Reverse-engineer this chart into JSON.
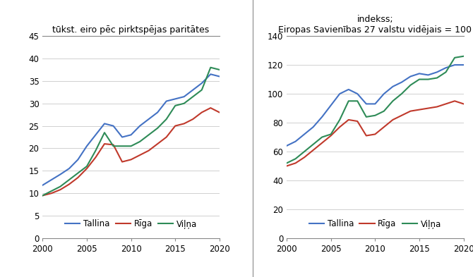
{
  "years": [
    2000,
    2001,
    2002,
    2003,
    2004,
    2005,
    2006,
    2007,
    2008,
    2009,
    2010,
    2011,
    2012,
    2013,
    2014,
    2015,
    2016,
    2017,
    2018,
    2019,
    2020
  ],
  "left": {
    "title": "tūkst. eiro pēc pirktspējas paritātes",
    "tallinn": [
      11.8,
      13.0,
      14.2,
      15.5,
      17.5,
      20.5,
      23.0,
      25.5,
      25.0,
      22.5,
      23.0,
      25.0,
      26.5,
      28.0,
      30.5,
      31.0,
      31.5,
      33.0,
      34.5,
      36.5,
      36.0
    ],
    "riga": [
      9.5,
      10.0,
      10.8,
      12.0,
      13.5,
      15.5,
      18.0,
      21.0,
      20.8,
      17.0,
      17.5,
      18.5,
      19.5,
      21.0,
      22.5,
      25.0,
      25.5,
      26.5,
      28.0,
      29.0,
      28.0
    ],
    "vilnius": [
      9.5,
      10.5,
      11.5,
      13.0,
      14.5,
      16.0,
      19.5,
      23.5,
      20.5,
      20.5,
      20.5,
      21.5,
      23.0,
      24.5,
      26.5,
      29.5,
      30.0,
      31.5,
      33.0,
      38.0,
      37.5
    ],
    "ylim": [
      0,
      45
    ],
    "yticks": [
      0,
      5,
      10,
      15,
      20,
      25,
      30,
      35,
      40,
      45
    ]
  },
  "right": {
    "title": "indekss;\nEiropas Savienības 27 valstu vidējais = 100",
    "tallinn": [
      64,
      67,
      72,
      77,
      84,
      92,
      100,
      103,
      100,
      93,
      93,
      100,
      105,
      108,
      112,
      114,
      113,
      115,
      118,
      120,
      120
    ],
    "riga": [
      50,
      52,
      56,
      61,
      66,
      71,
      77,
      82,
      81,
      71,
      72,
      77,
      82,
      85,
      88,
      89,
      90,
      91,
      93,
      95,
      93
    ],
    "vilnius": [
      52,
      55,
      60,
      65,
      70,
      72,
      82,
      95,
      95,
      84,
      85,
      88,
      95,
      100,
      106,
      110,
      110,
      111,
      115,
      125,
      126
    ],
    "ylim": [
      0,
      140
    ],
    "yticks": [
      0,
      20,
      40,
      60,
      80,
      100,
      120,
      140
    ]
  },
  "colors": {
    "tallinn": "#4472C4",
    "riga": "#C0392B",
    "vilnius": "#2E8B57"
  },
  "legend_labels": [
    "Tallina",
    "Rīga",
    "Viļņa"
  ],
  "xlim": [
    2000,
    2020
  ],
  "xticks": [
    2000,
    2005,
    2010,
    2015,
    2020
  ],
  "line_width": 1.5,
  "title_fontsize": 9,
  "tick_fontsize": 8.5,
  "legend_fontsize": 8.5,
  "bg_color": "#ffffff",
  "grid_color": "#d0d0d0",
  "spine_color": "#888888"
}
